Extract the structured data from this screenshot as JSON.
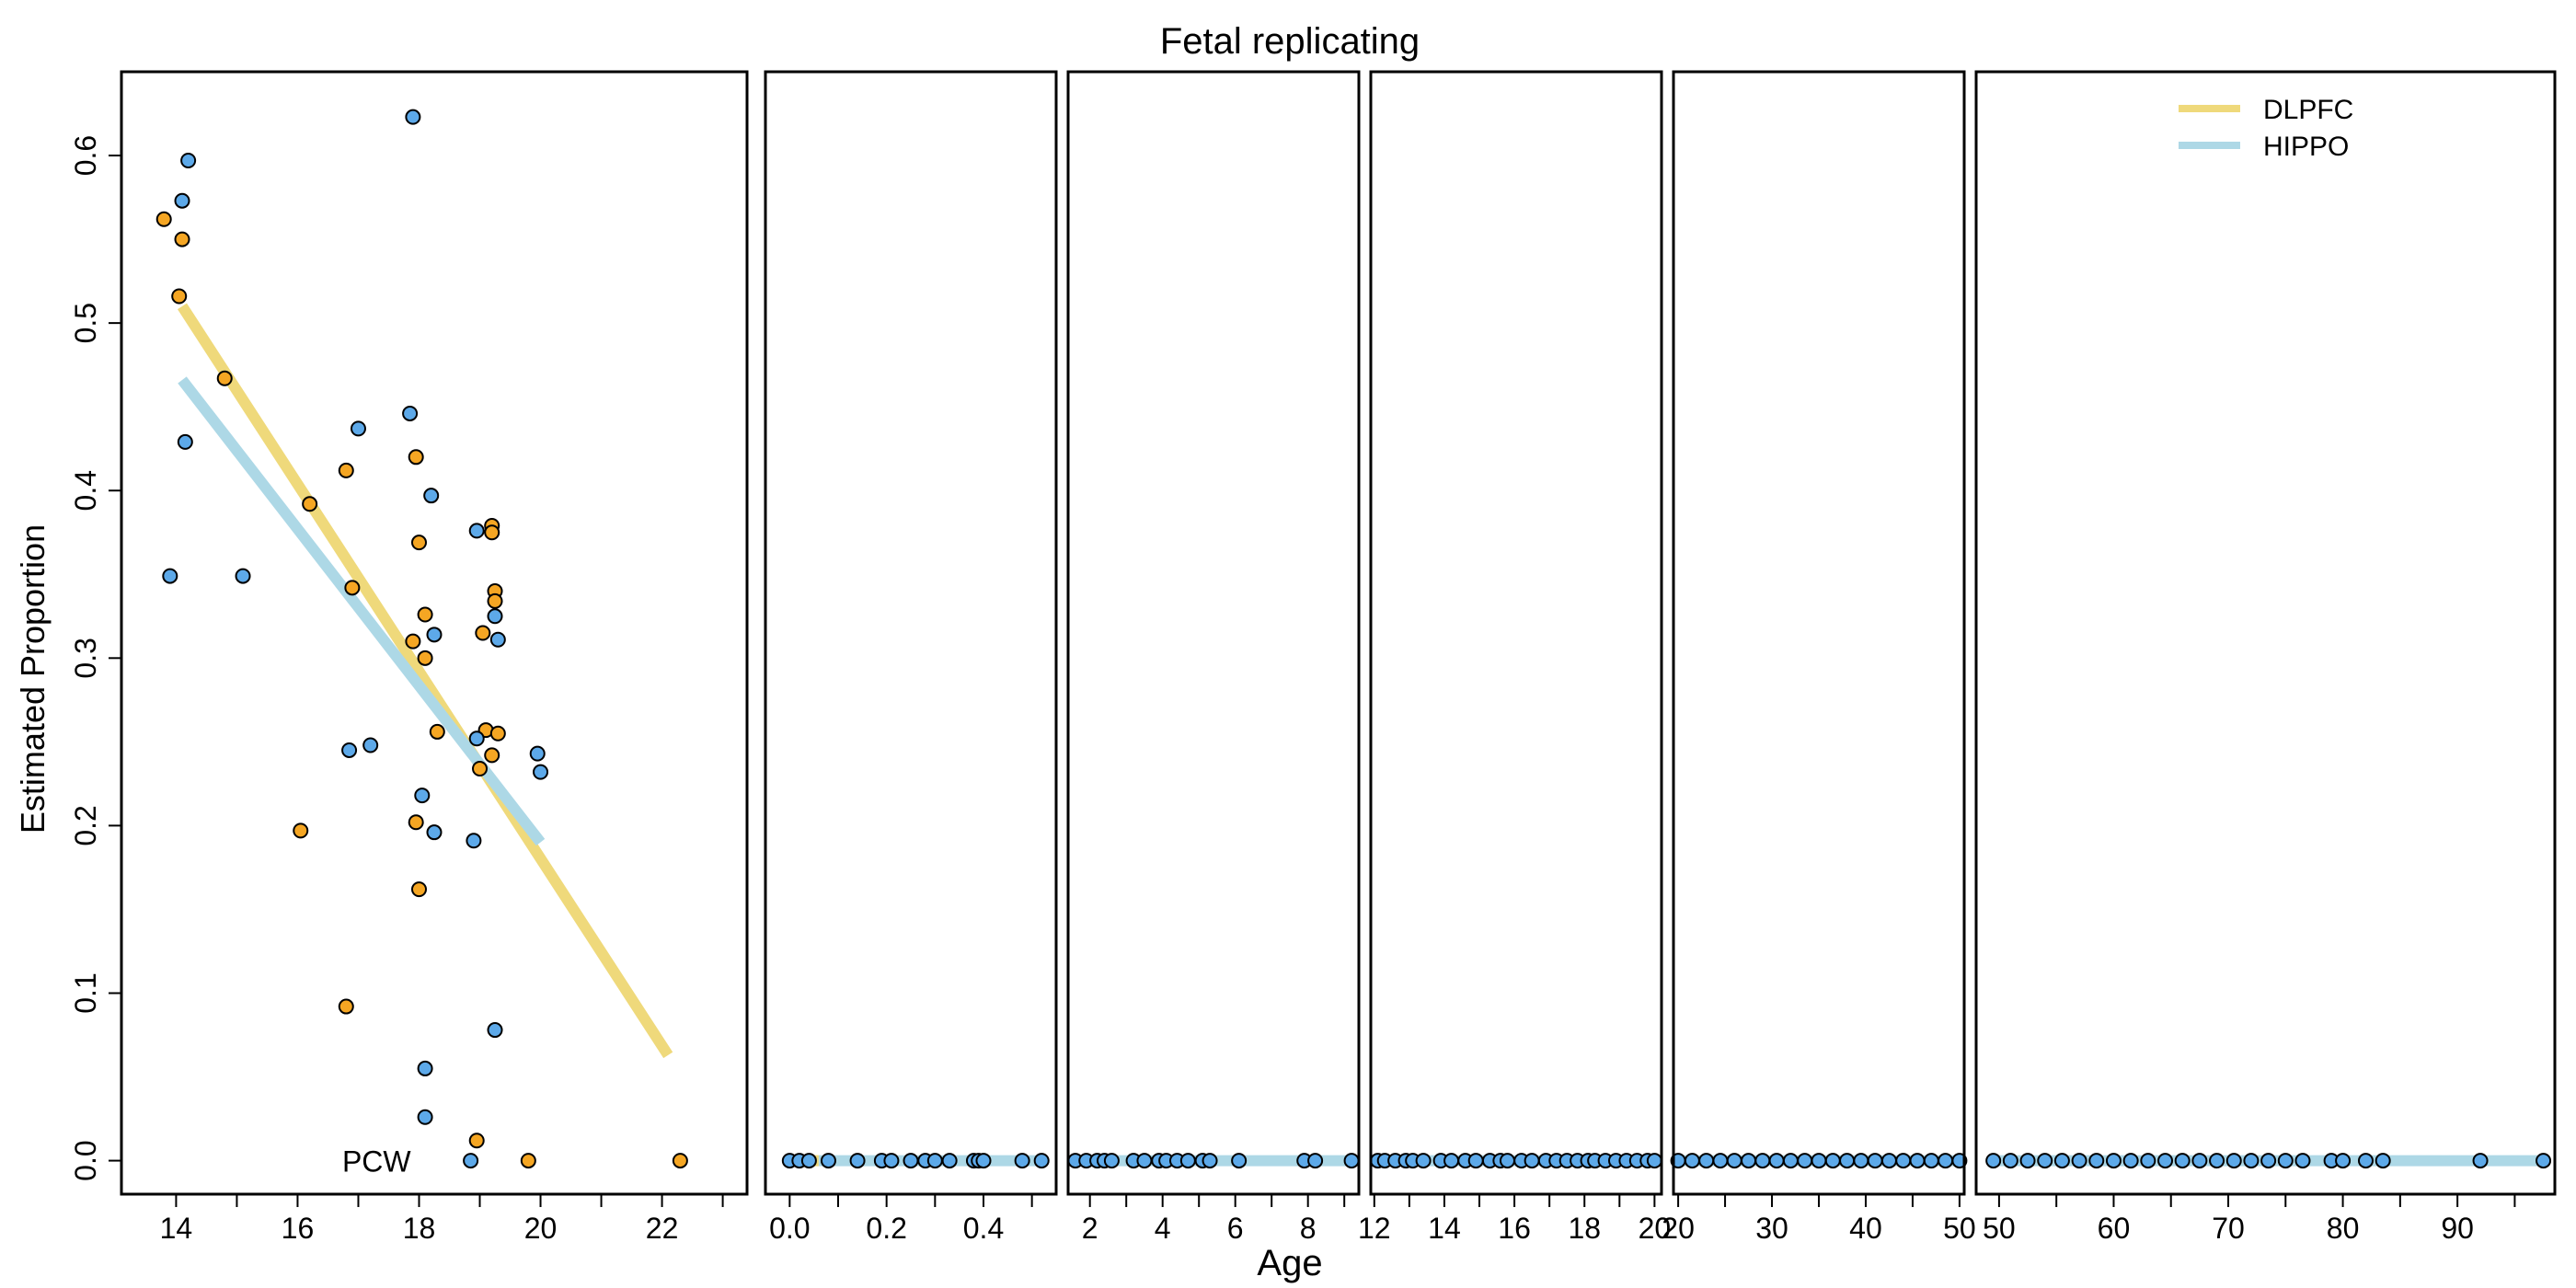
{
  "chart_data": {
    "type": "scatter",
    "title": "Fetal replicating",
    "xlabel": "Age",
    "ylabel": "Estimated Proportion",
    "ylim": [
      -0.02,
      0.65
    ],
    "yticks": [
      "0.0",
      "0.1",
      "0.2",
      "0.3",
      "0.4",
      "0.5",
      "0.6"
    ],
    "legend": {
      "position": "top-right",
      "entries": [
        {
          "name": "DLPFC",
          "color": "#EFD97B"
        },
        {
          "name": "HIPPO",
          "color": "#ADD8E6"
        }
      ]
    },
    "point_colors": {
      "DLPFC": "#F5A623",
      "HIPPO": "#5DA9E9"
    },
    "panels": [
      {
        "xlim": [
          13.1,
          23.4
        ],
        "xticks": [
          "14",
          "16",
          "18",
          "20",
          "22"
        ],
        "annotation": "PCW",
        "fit_lines": [
          {
            "series": "DLPFC",
            "x": [
              14.1,
              22.1
            ],
            "y": [
              0.51,
              0.063
            ]
          },
          {
            "series": "HIPPO",
            "x": [
              14.1,
              20.0
            ],
            "y": [
              0.466,
              0.19
            ]
          }
        ],
        "points": [
          {
            "series": "DLPFC",
            "x": 13.8,
            "y": 0.562
          },
          {
            "series": "DLPFC",
            "x": 14.1,
            "y": 0.55
          },
          {
            "series": "DLPFC",
            "x": 14.05,
            "y": 0.516
          },
          {
            "series": "DLPFC",
            "x": 14.8,
            "y": 0.467
          },
          {
            "series": "DLPFC",
            "x": 16.2,
            "y": 0.392
          },
          {
            "series": "DLPFC",
            "x": 16.8,
            "y": 0.412
          },
          {
            "series": "DLPFC",
            "x": 16.9,
            "y": 0.342
          },
          {
            "series": "DLPFC",
            "x": 16.05,
            "y": 0.197
          },
          {
            "series": "DLPFC",
            "x": 16.8,
            "y": 0.092
          },
          {
            "series": "DLPFC",
            "x": 17.95,
            "y": 0.42
          },
          {
            "series": "DLPFC",
            "x": 18.0,
            "y": 0.369
          },
          {
            "series": "DLPFC",
            "x": 18.1,
            "y": 0.326
          },
          {
            "series": "DLPFC",
            "x": 17.9,
            "y": 0.31
          },
          {
            "series": "DLPFC",
            "x": 18.1,
            "y": 0.3
          },
          {
            "series": "DLPFC",
            "x": 18.3,
            "y": 0.256
          },
          {
            "series": "DLPFC",
            "x": 17.95,
            "y": 0.202
          },
          {
            "series": "DLPFC",
            "x": 18.0,
            "y": 0.162
          },
          {
            "series": "DLPFC",
            "x": 19.2,
            "y": 0.379
          },
          {
            "series": "DLPFC",
            "x": 19.2,
            "y": 0.375
          },
          {
            "series": "DLPFC",
            "x": 19.25,
            "y": 0.34
          },
          {
            "series": "DLPFC",
            "x": 19.25,
            "y": 0.334
          },
          {
            "series": "DLPFC",
            "x": 19.05,
            "y": 0.315
          },
          {
            "series": "DLPFC",
            "x": 19.1,
            "y": 0.257
          },
          {
            "series": "DLPFC",
            "x": 19.3,
            "y": 0.255
          },
          {
            "series": "DLPFC",
            "x": 19.2,
            "y": 0.242
          },
          {
            "series": "DLPFC",
            "x": 19.0,
            "y": 0.234
          },
          {
            "series": "DLPFC",
            "x": 18.95,
            "y": 0.012
          },
          {
            "series": "DLPFC",
            "x": 19.8,
            "y": 0.0
          },
          {
            "series": "DLPFC",
            "x": 22.3,
            "y": 0.0
          },
          {
            "series": "HIPPO",
            "x": 14.2,
            "y": 0.597
          },
          {
            "series": "HIPPO",
            "x": 14.1,
            "y": 0.573
          },
          {
            "series": "HIPPO",
            "x": 14.15,
            "y": 0.429
          },
          {
            "series": "HIPPO",
            "x": 13.9,
            "y": 0.349
          },
          {
            "series": "HIPPO",
            "x": 15.1,
            "y": 0.349
          },
          {
            "series": "HIPPO",
            "x": 17.0,
            "y": 0.437
          },
          {
            "series": "HIPPO",
            "x": 16.85,
            "y": 0.245
          },
          {
            "series": "HIPPO",
            "x": 17.2,
            "y": 0.248
          },
          {
            "series": "HIPPO",
            "x": 17.9,
            "y": 0.623
          },
          {
            "series": "HIPPO",
            "x": 17.85,
            "y": 0.446
          },
          {
            "series": "HIPPO",
            "x": 18.2,
            "y": 0.397
          },
          {
            "series": "HIPPO",
            "x": 18.25,
            "y": 0.314
          },
          {
            "series": "HIPPO",
            "x": 18.05,
            "y": 0.218
          },
          {
            "series": "HIPPO",
            "x": 18.25,
            "y": 0.196
          },
          {
            "series": "HIPPO",
            "x": 18.1,
            "y": 0.055
          },
          {
            "series": "HIPPO",
            "x": 18.1,
            "y": 0.026
          },
          {
            "series": "HIPPO",
            "x": 18.95,
            "y": 0.376
          },
          {
            "series": "HIPPO",
            "x": 19.25,
            "y": 0.325
          },
          {
            "series": "HIPPO",
            "x": 19.3,
            "y": 0.311
          },
          {
            "series": "HIPPO",
            "x": 18.95,
            "y": 0.252
          },
          {
            "series": "HIPPO",
            "x": 18.9,
            "y": 0.191
          },
          {
            "series": "HIPPO",
            "x": 19.25,
            "y": 0.078
          },
          {
            "series": "HIPPO",
            "x": 18.85,
            "y": 0.0
          },
          {
            "series": "HIPPO",
            "x": 19.95,
            "y": 0.243
          },
          {
            "series": "HIPPO",
            "x": 20.0,
            "y": 0.232
          }
        ]
      },
      {
        "xlim": [
          -0.05,
          0.55
        ],
        "xticks": [
          "0.0",
          "0.2",
          "0.4"
        ],
        "fit_lines": [
          {
            "series": "DLPFC",
            "x": [
              0.0,
              0.06
            ],
            "y": [
              0.0,
              0.0
            ]
          },
          {
            "series": "HIPPO",
            "x": [
              0.06,
              0.52
            ],
            "y": [
              0.0,
              0.0
            ]
          }
        ],
        "point_x": [
          0.0,
          0.02,
          0.04,
          0.08,
          0.14,
          0.19,
          0.21,
          0.25,
          0.28,
          0.3,
          0.33,
          0.38,
          0.39,
          0.4,
          0.48,
          0.52
        ]
      },
      {
        "xlim": [
          1.4,
          9.4
        ],
        "xticks": [
          "2",
          "4",
          "6",
          "8"
        ],
        "fit_lines": [
          {
            "series": "HIPPO",
            "x": [
              1.6,
              9.2
            ],
            "y": [
              0.0,
              0.0
            ]
          }
        ],
        "point_x": [
          1.6,
          1.9,
          2.2,
          2.4,
          2.6,
          3.2,
          3.5,
          3.9,
          4.1,
          4.4,
          4.7,
          5.1,
          5.3,
          6.1,
          7.9,
          8.2,
          9.2
        ]
      },
      {
        "xlim": [
          11.9,
          20.2
        ],
        "xticks": [
          "12",
          "14",
          "16",
          "18",
          "20"
        ],
        "fit_lines": [
          {
            "series": "HIPPO",
            "x": [
              12.1,
              20.0
            ],
            "y": [
              0.0,
              0.0
            ]
          }
        ],
        "point_x": [
          12.1,
          12.3,
          12.6,
          12.9,
          13.1,
          13.4,
          13.9,
          14.2,
          14.6,
          14.9,
          15.3,
          15.6,
          15.8,
          16.2,
          16.5,
          16.9,
          17.2,
          17.5,
          17.8,
          18.1,
          18.3,
          18.6,
          18.9,
          19.2,
          19.5,
          19.8,
          20.0
        ]
      },
      {
        "xlim": [
          19.5,
          50.5
        ],
        "xticks": [
          "20",
          "30",
          "40",
          "50"
        ],
        "fit_lines": [
          {
            "series": "HIPPO",
            "x": [
              20.0,
              50.0
            ],
            "y": [
              0.0,
              0.0
            ]
          }
        ],
        "point_x": [
          20,
          21.5,
          23,
          24.5,
          26,
          27.5,
          29,
          30.5,
          32,
          33.5,
          35,
          36.5,
          38,
          39.5,
          41,
          42.5,
          44,
          45.5,
          47,
          48.5,
          50
        ]
      },
      {
        "xlim": [
          48,
          98.5
        ],
        "xticks": [
          "50",
          "60",
          "70",
          "80",
          "90"
        ],
        "fit_lines": [
          {
            "series": "HIPPO",
            "x": [
              49.5,
              97.5
            ],
            "y": [
              0.0,
              0.0
            ]
          }
        ],
        "point_x": [
          49.5,
          51,
          52.5,
          54,
          55.5,
          57,
          58.5,
          60,
          61.5,
          63,
          64.5,
          66,
          67.5,
          69,
          70.5,
          72,
          73.5,
          75,
          76.5,
          79,
          80,
          82,
          83.5,
          92,
          97.5
        ]
      }
    ]
  }
}
